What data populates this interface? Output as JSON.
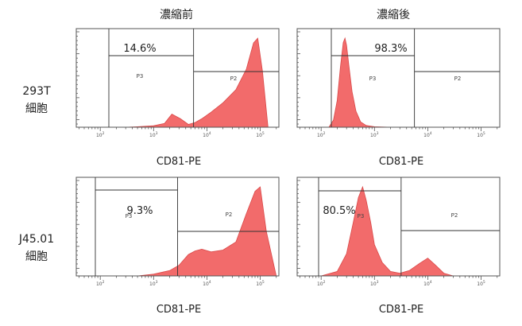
{
  "columns": [
    "濃縮前",
    "濃縮後"
  ],
  "rows": [
    {
      "label_lines": [
        "293T",
        "細胞"
      ]
    },
    {
      "label_lines": [
        "J45.01",
        "細胞"
      ]
    }
  ],
  "colors": {
    "histogram_fill": "#f26b6b",
    "histogram_stroke": "#d94848",
    "gate_line": "#333333"
  },
  "chart_data": [
    {
      "type": "area",
      "row": "293T 細胞",
      "column": "濃縮前",
      "xlabel": "CD81-PE",
      "x_scale": "log",
      "xticks": [
        "10^2",
        "10^3",
        "10^4",
        "10^5"
      ],
      "gates": [
        {
          "name": "P3",
          "percent": "14.6%"
        },
        {
          "name": "P2",
          "percent": ""
        }
      ],
      "annotation": "14.6%",
      "x": [
        100,
        150,
        300,
        500,
        1000,
        1600,
        2200,
        3200,
        4500,
        6000,
        8000,
        12000,
        20000,
        35000,
        55000,
        75000,
        90000,
        110000,
        140000
      ],
      "values": [
        0,
        0,
        0,
        0.5,
        1.5,
        4,
        14,
        9,
        3,
        5,
        9,
        16,
        26,
        40,
        62,
        90,
        95,
        60,
        0
      ]
    },
    {
      "type": "area",
      "row": "293T 細胞",
      "column": "濃縮後",
      "xlabel": "CD81-PE",
      "x_scale": "log",
      "xticks": [
        "10^2",
        "10^3",
        "10^4",
        "10^5"
      ],
      "gates": [
        {
          "name": "P3",
          "percent": "98.3%"
        },
        {
          "name": "P2",
          "percent": ""
        }
      ],
      "annotation": "98.3%",
      "x": [
        100,
        140,
        170,
        200,
        230,
        260,
        280,
        300,
        330,
        380,
        450,
        550,
        700,
        1000,
        2000,
        5000
      ],
      "values": [
        0,
        0,
        8,
        30,
        68,
        95,
        100,
        92,
        70,
        40,
        18,
        6,
        2,
        0.5,
        0,
        0
      ]
    },
    {
      "type": "area",
      "row": "J45.01 細胞",
      "column": "濃縮前",
      "xlabel": "CD81-PE",
      "x_scale": "log",
      "xticks": [
        "10^2",
        "10^3",
        "10^4",
        "10^5"
      ],
      "gates": [
        {
          "name": "P3",
          "percent": "9.3%"
        },
        {
          "name": "P2",
          "percent": ""
        }
      ],
      "annotation": "9.3%",
      "x": [
        200,
        500,
        1000,
        2000,
        3000,
        4500,
        6000,
        8000,
        12000,
        20000,
        35000,
        55000,
        80000,
        100000,
        130000,
        200000
      ],
      "values": [
        0,
        0,
        2,
        6,
        12,
        24,
        28,
        30,
        27,
        29,
        38,
        70,
        95,
        100,
        50,
        0
      ]
    },
    {
      "type": "area",
      "row": "J45.01 細胞",
      "column": "濃縮後",
      "xlabel": "CD81-PE",
      "x_scale": "log",
      "xticks": [
        "10^2",
        "10^3",
        "10^4",
        "10^5"
      ],
      "gates": [
        {
          "name": "P3",
          "percent": "80.5%"
        },
        {
          "name": "P2",
          "percent": ""
        }
      ],
      "annotation": "80.5%",
      "x": [
        100,
        200,
        300,
        400,
        500,
        600,
        700,
        850,
        1000,
        1400,
        2000,
        3000,
        4500,
        7000,
        10000,
        14000,
        20000,
        30000
      ],
      "values": [
        0,
        5,
        25,
        60,
        88,
        100,
        85,
        60,
        35,
        15,
        5,
        3,
        6,
        14,
        20,
        12,
        3,
        0
      ]
    }
  ]
}
